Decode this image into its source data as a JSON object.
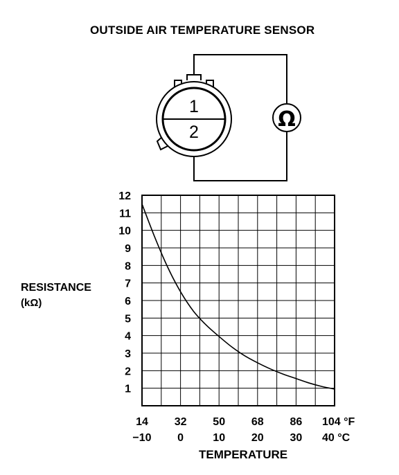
{
  "title": "OUTSIDE AIR TEMPERATURE SENSOR",
  "sensor": {
    "terminal_top": "1",
    "terminal_bottom": "2",
    "meter_symbol": "Ω"
  },
  "chart_data": {
    "type": "line",
    "ylabel_line1": "RESISTANCE",
    "ylabel_line2": "(kΩ)",
    "xlabel": "TEMPERATURE",
    "ylim": [
      0,
      12
    ],
    "yticks": [
      "1",
      "2",
      "3",
      "4",
      "5",
      "6",
      "7",
      "8",
      "9",
      "10",
      "11",
      "12"
    ],
    "xlim": [
      14,
      104
    ],
    "xticks_f": [
      "14",
      "32",
      "50",
      "68",
      "86",
      "104 °F"
    ],
    "xticks_c": [
      "−10",
      "0",
      "10",
      "20",
      "30",
      "40 °C"
    ],
    "grid": true,
    "series": [
      {
        "x": [
          14,
          20,
          26,
          32,
          38,
          44,
          50,
          56,
          62,
          68,
          74,
          80,
          86,
          92,
          98,
          104
        ],
        "y": [
          11.5,
          9.6,
          7.9,
          6.5,
          5.4,
          4.6,
          3.95,
          3.35,
          2.85,
          2.45,
          2.1,
          1.8,
          1.55,
          1.3,
          1.1,
          0.95
        ]
      }
    ]
  }
}
